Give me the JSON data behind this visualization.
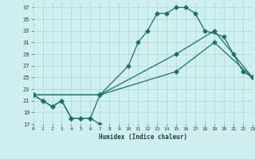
{
  "xlabel": "Humidex (Indice chaleur)",
  "xlim": [
    0,
    23
  ],
  "ylim": [
    17,
    38
  ],
  "yticks": [
    17,
    19,
    21,
    23,
    25,
    27,
    29,
    31,
    33,
    35,
    37
  ],
  "xtick_labels": [
    "0",
    "1",
    "2",
    "3",
    "4",
    "5",
    "6",
    "7",
    "8",
    "9",
    "10",
    "11",
    "12",
    "13",
    "14",
    "15",
    "16",
    "17",
    "18",
    "19",
    "20",
    "21",
    "22",
    "23"
  ],
  "background_color": "#cff0ee",
  "grid_color": "#aad4d2",
  "line_color": "#1a7070",
  "line1_x": [
    0,
    1,
    2,
    3,
    4,
    5,
    6,
    7
  ],
  "line1_y": [
    22,
    21,
    20,
    21,
    18,
    18,
    18,
    17
  ],
  "line2_x": [
    0,
    1,
    2,
    3,
    4,
    5,
    6,
    7,
    10,
    11,
    12,
    13,
    14,
    15,
    16,
    17,
    18,
    20,
    21,
    22,
    23
  ],
  "line2_y": [
    22,
    21,
    20,
    21,
    18,
    18,
    18,
    22,
    27,
    31,
    33,
    36,
    36,
    37,
    37,
    36,
    33,
    32,
    29,
    26,
    25
  ],
  "line3_x": [
    0,
    7,
    15,
    19,
    23
  ],
  "line3_y": [
    22,
    22,
    29,
    33,
    25
  ],
  "line4_x": [
    0,
    7,
    15,
    19,
    23
  ],
  "line4_y": [
    22,
    22,
    26,
    31,
    25
  ]
}
